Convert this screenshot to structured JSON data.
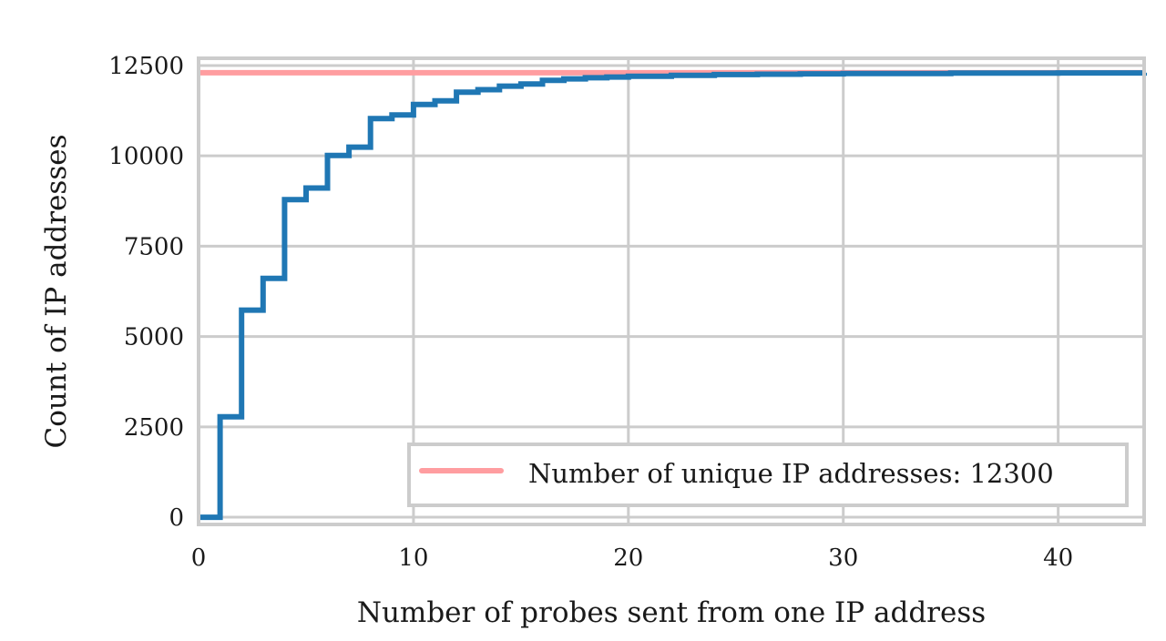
{
  "chart_data": {
    "type": "line",
    "step": true,
    "xlabel": "Number of probes sent from one IP address",
    "ylabel": "Count of IP addresses",
    "xlim": [
      0,
      44
    ],
    "ylim": [
      -200,
      12700
    ],
    "xticks": [
      0,
      10,
      20,
      30,
      40
    ],
    "yticks": [
      0,
      2500,
      5000,
      7500,
      10000,
      12500
    ],
    "grid": true,
    "legend_position": "lower-right",
    "series": [
      {
        "name": "",
        "color": "#1f77b4",
        "x": [
          0,
          1,
          2,
          3,
          4,
          5,
          6,
          7,
          8,
          9,
          10,
          11,
          12,
          13,
          14,
          15,
          16,
          17,
          18,
          19,
          20,
          22,
          24,
          26,
          28,
          30,
          35,
          40,
          44
        ],
        "y": [
          0,
          2780,
          5730,
          6610,
          8790,
          9110,
          10010,
          10240,
          11030,
          11130,
          11420,
          11520,
          11760,
          11830,
          11930,
          11990,
          12090,
          12130,
          12160,
          12180,
          12200,
          12230,
          12250,
          12260,
          12270,
          12280,
          12290,
          12295,
          12300
        ]
      }
    ],
    "reference_line": {
      "label": "Number of unique IP addresses: 12300",
      "value": 12300,
      "color": "#ff9da0"
    },
    "colors": {
      "grid": "#cccccc",
      "frame": "#cccccc"
    }
  }
}
